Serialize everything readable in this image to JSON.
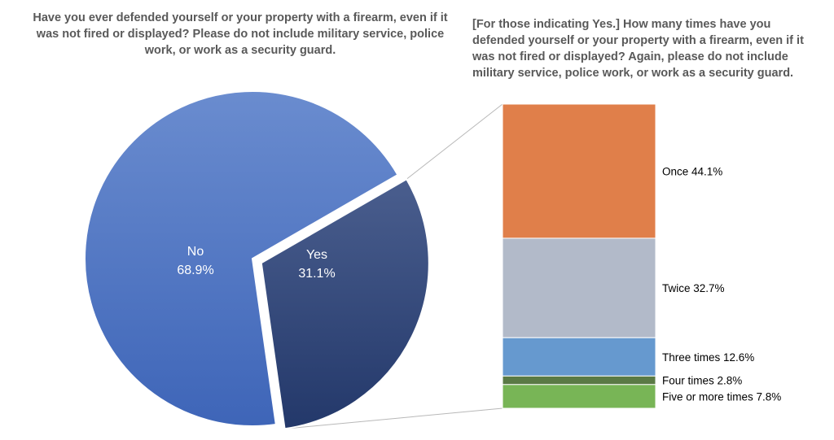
{
  "chart_data": [
    {
      "type": "pie",
      "title": "Have you ever defended yourself or your property with a firearm, even if it was not fired or displayed? Please do not include military service, police work, or work as a security guard.",
      "slices": [
        {
          "label": "No",
          "value_label": "68.9%",
          "value": 68.9,
          "color": "#4a72c1"
        },
        {
          "label": "Yes",
          "value_label": "31.1%",
          "value": 31.1,
          "color": "#2f4577"
        }
      ]
    },
    {
      "type": "bar",
      "stacked": true,
      "title": "[For those indicating Yes.] How many times have you defended yourself or your property with a firearm, even if it was not fired or displayed? Again, please do not include military service, police work, or work as a security guard.",
      "series": [
        {
          "name": "Once",
          "label": "Once 44.1%",
          "value": 44.1,
          "color": "#e07f4a"
        },
        {
          "name": "Twice",
          "label": "Twice 32.7%",
          "value": 32.7,
          "color": "#b2bac9"
        },
        {
          "name": "Three times",
          "label": "Three times 12.6%",
          "value": 12.6,
          "color": "#6699cf"
        },
        {
          "name": "Four times",
          "label": "Four times 2.8%",
          "value": 2.8,
          "color": "#5a7a45"
        },
        {
          "name": "Five or more times",
          "label": "Five or more times 7.8%",
          "value": 7.8,
          "color": "#78b556"
        }
      ]
    }
  ]
}
